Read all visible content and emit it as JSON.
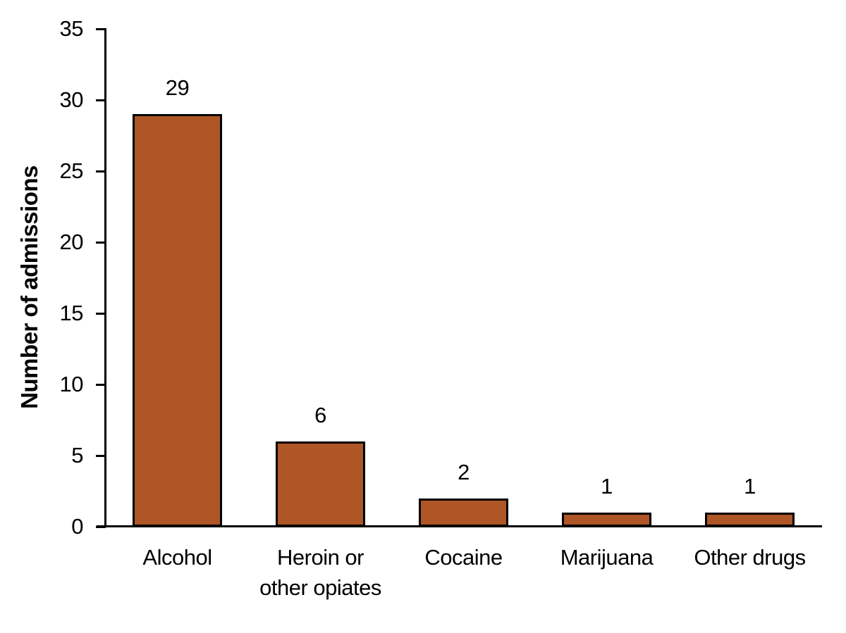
{
  "chart_data": {
    "type": "bar",
    "title": "",
    "categories": [
      "Alcohol",
      "Heroin or\nother opiates",
      "Cocaine",
      "Marijuana",
      "Other drugs"
    ],
    "values": [
      29,
      6,
      2,
      1,
      1
    ],
    "value_labels": [
      "29",
      "6",
      "2",
      "1",
      "1"
    ],
    "xlabel": "",
    "ylabel": "Number of admissions",
    "ylim": [
      0,
      35
    ],
    "yticks": [
      0,
      5,
      10,
      15,
      20,
      25,
      30,
      35
    ],
    "grid": false,
    "legend_position": "none",
    "colors": {
      "bar_fill": "#AF5626",
      "bar_border": "#000000",
      "axis": "#000000",
      "text": "#000000",
      "background": "#FFFFFF"
    }
  }
}
